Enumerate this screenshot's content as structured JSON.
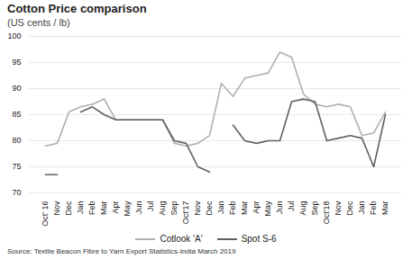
{
  "chart_data": {
    "type": "line",
    "title": "Cotton Price comparison",
    "subtitle": "(US cents / lb)",
    "source": "Source: Textile Beacon Fibre to Yarn Export Statistics-India March 2019",
    "categories": [
      "Oct' 16",
      "Nov",
      "Dec",
      "Jan",
      "Feb",
      "Mar",
      "Apr",
      "May",
      "Jun",
      "Jul",
      "Aug",
      "Sep",
      "Oct'17",
      "Nov",
      "Dec",
      "Jan",
      "Feb",
      "Mar",
      "Apr",
      "May",
      "Jun",
      "Jul",
      "Aug",
      "Sep",
      "Oct'18",
      "Nov",
      "Dec",
      "Jan",
      "Feb",
      "Mar"
    ],
    "series": [
      {
        "name": "Cotlook 'A'",
        "color": "#b0b0b0",
        "values": [
          79,
          79.5,
          85.5,
          86.5,
          87,
          88,
          84,
          84,
          84,
          84,
          84,
          79.5,
          79,
          79.5,
          81,
          91,
          88.5,
          92,
          92.5,
          93,
          97,
          96,
          89,
          87,
          86.5,
          87,
          86.5,
          81,
          81.5,
          85.5
        ]
      },
      {
        "name": "Spot S-6",
        "color": "#606060",
        "values": [
          73.5,
          73.5,
          null,
          85.5,
          86.5,
          85,
          84,
          84,
          84,
          84,
          84,
          80,
          79.5,
          75,
          74,
          null,
          83,
          80,
          79.5,
          80,
          80,
          87.5,
          88,
          87.5,
          80,
          80.5,
          81,
          80.5,
          75,
          85
        ]
      }
    ],
    "ylim": [
      70,
      100
    ],
    "yticks": [
      70,
      75,
      80,
      85,
      90,
      95,
      100
    ],
    "grid": true,
    "legend": "bottom"
  }
}
